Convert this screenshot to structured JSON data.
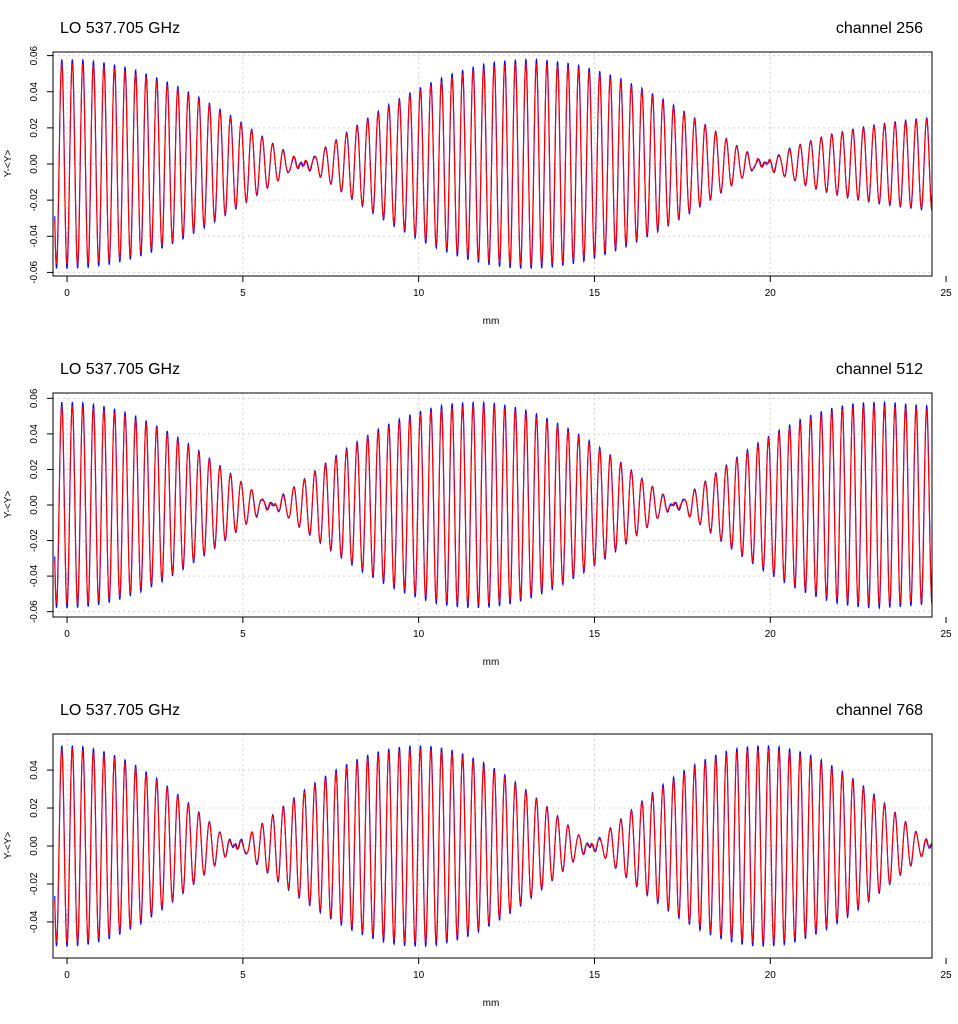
{
  "chart_data": [
    {
      "type": "line",
      "title_left": "LO 537.705 GHz",
      "title_right": "channel 256",
      "xlabel": "mm",
      "ylabel": "Y-<Y>",
      "xlim": [
        -0.4,
        24.6
      ],
      "ylim": [
        -0.062,
        0.062
      ],
      "xticks": [
        0,
        5,
        10,
        15,
        20,
        25
      ],
      "yticks": [
        -0.06,
        -0.04,
        -0.02,
        0.0,
        0.02,
        0.04,
        0.06
      ],
      "ytick_labels": [
        "-0.06",
        "-0.04",
        "-0.02",
        "0.00",
        "0.02",
        "0.04",
        "0.06"
      ],
      "grid": true,
      "signal": {
        "period_mm": 0.3,
        "beat_nodes_mm": [
          6.7,
          19.8
        ],
        "envelope_max": 0.058,
        "peaks_mm": [
          0,
          13.1
        ]
      },
      "series": [
        {
          "color": "#0000ff"
        },
        {
          "color": "#ff0000"
        }
      ]
    },
    {
      "type": "line",
      "title_left": "LO 537.705 GHz",
      "title_right": "channel 512",
      "xlabel": "mm",
      "ylabel": "Y-<Y>",
      "xlim": [
        -0.4,
        24.6
      ],
      "ylim": [
        -0.063,
        0.063
      ],
      "xticks": [
        0,
        5,
        10,
        15,
        20,
        25
      ],
      "yticks": [
        -0.06,
        -0.04,
        -0.02,
        0.0,
        0.02,
        0.04,
        0.06
      ],
      "ytick_labels": [
        "-0.06",
        "-0.04",
        "-0.02",
        "0.00",
        "0.02",
        "0.04",
        "0.06"
      ],
      "grid": true,
      "signal": {
        "period_mm": 0.3,
        "beat_nodes_mm": [
          5.8,
          17.3
        ],
        "envelope_max": 0.058,
        "peaks_mm": [
          0,
          11.6,
          23.0
        ]
      },
      "series": [
        {
          "color": "#0000ff"
        },
        {
          "color": "#ff0000"
        }
      ]
    },
    {
      "type": "line",
      "title_left": "LO 537.705 GHz",
      "title_right": "channel 768",
      "xlabel": "mm",
      "ylabel": "Y-<Y>",
      "xlim": [
        -0.4,
        24.6
      ],
      "ylim": [
        -0.059,
        0.059
      ],
      "xticks": [
        0,
        5,
        10,
        15,
        20,
        25
      ],
      "yticks": [
        -0.04,
        -0.02,
        0.0,
        0.02,
        0.04
      ],
      "ytick_labels": [
        "-0.04",
        "-0.02",
        "0.00",
        "0.02",
        "0.04"
      ],
      "grid": true,
      "signal": {
        "period_mm": 0.3,
        "beat_nodes_mm": [
          4.8,
          14.9,
          24.6
        ],
        "envelope_max": 0.053,
        "peaks_mm": [
          0,
          10.0,
          19.8
        ]
      },
      "series": [
        {
          "color": "#0000ff"
        },
        {
          "color": "#ff0000"
        }
      ]
    }
  ]
}
